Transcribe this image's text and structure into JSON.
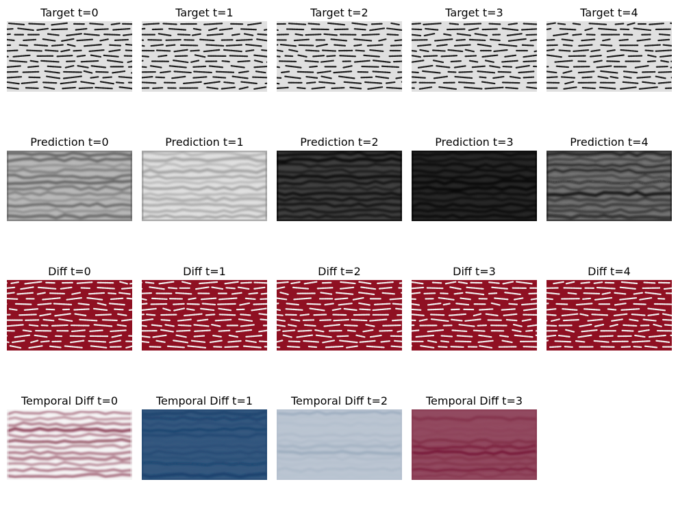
{
  "rows": [
    {
      "id": "target",
      "panels": [
        {
          "title": "Target t=0",
          "style": "target",
          "seed": 11
        },
        {
          "title": "Target t=1",
          "style": "target",
          "seed": 12
        },
        {
          "title": "Target t=2",
          "style": "target",
          "seed": 13
        },
        {
          "title": "Target t=3",
          "style": "target",
          "seed": 14
        },
        {
          "title": "Target t=4",
          "style": "target",
          "seed": 15
        }
      ]
    },
    {
      "id": "prediction",
      "panels": [
        {
          "title": "Prediction t=0",
          "style": "pred",
          "seed": 21,
          "tone": 0.72
        },
        {
          "title": "Prediction t=1",
          "style": "pred",
          "seed": 22,
          "tone": 0.88
        },
        {
          "title": "Prediction t=2",
          "style": "pred",
          "seed": 23,
          "tone": 0.25
        },
        {
          "title": "Prediction t=3",
          "style": "pred",
          "seed": 24,
          "tone": 0.15
        },
        {
          "title": "Prediction t=4",
          "style": "pred",
          "seed": 25,
          "tone": 0.45
        }
      ]
    },
    {
      "id": "diff",
      "panels": [
        {
          "title": "Diff t=0",
          "style": "diff",
          "seed": 31
        },
        {
          "title": "Diff t=1",
          "style": "diff",
          "seed": 32
        },
        {
          "title": "Diff t=2",
          "style": "diff",
          "seed": 33
        },
        {
          "title": "Diff t=3",
          "style": "diff",
          "seed": 34
        },
        {
          "title": "Diff t=4",
          "style": "diff",
          "seed": 35
        }
      ]
    },
    {
      "id": "temporal-diff",
      "panels": [
        {
          "title": "Temporal Diff t=0",
          "style": "temporal",
          "seed": 41,
          "tone": 0.0
        },
        {
          "title": "Temporal Diff t=1",
          "style": "temporal",
          "seed": 42,
          "tone": -0.8
        },
        {
          "title": "Temporal Diff t=2",
          "style": "temporal",
          "seed": 43,
          "tone": -0.25
        },
        {
          "title": "Temporal Diff t=3",
          "style": "temporal",
          "seed": 44,
          "tone": 0.7
        }
      ]
    }
  ],
  "colors": {
    "target_bg": "#e0e0e0",
    "target_dash": "#1a1a1a",
    "diff_bg": "#8f1022",
    "diff_dash": "#f2f2f2",
    "rdbu_red": "#67001f",
    "rdbu_white": "#f7f7f7",
    "rdbu_blue": "#053061"
  }
}
